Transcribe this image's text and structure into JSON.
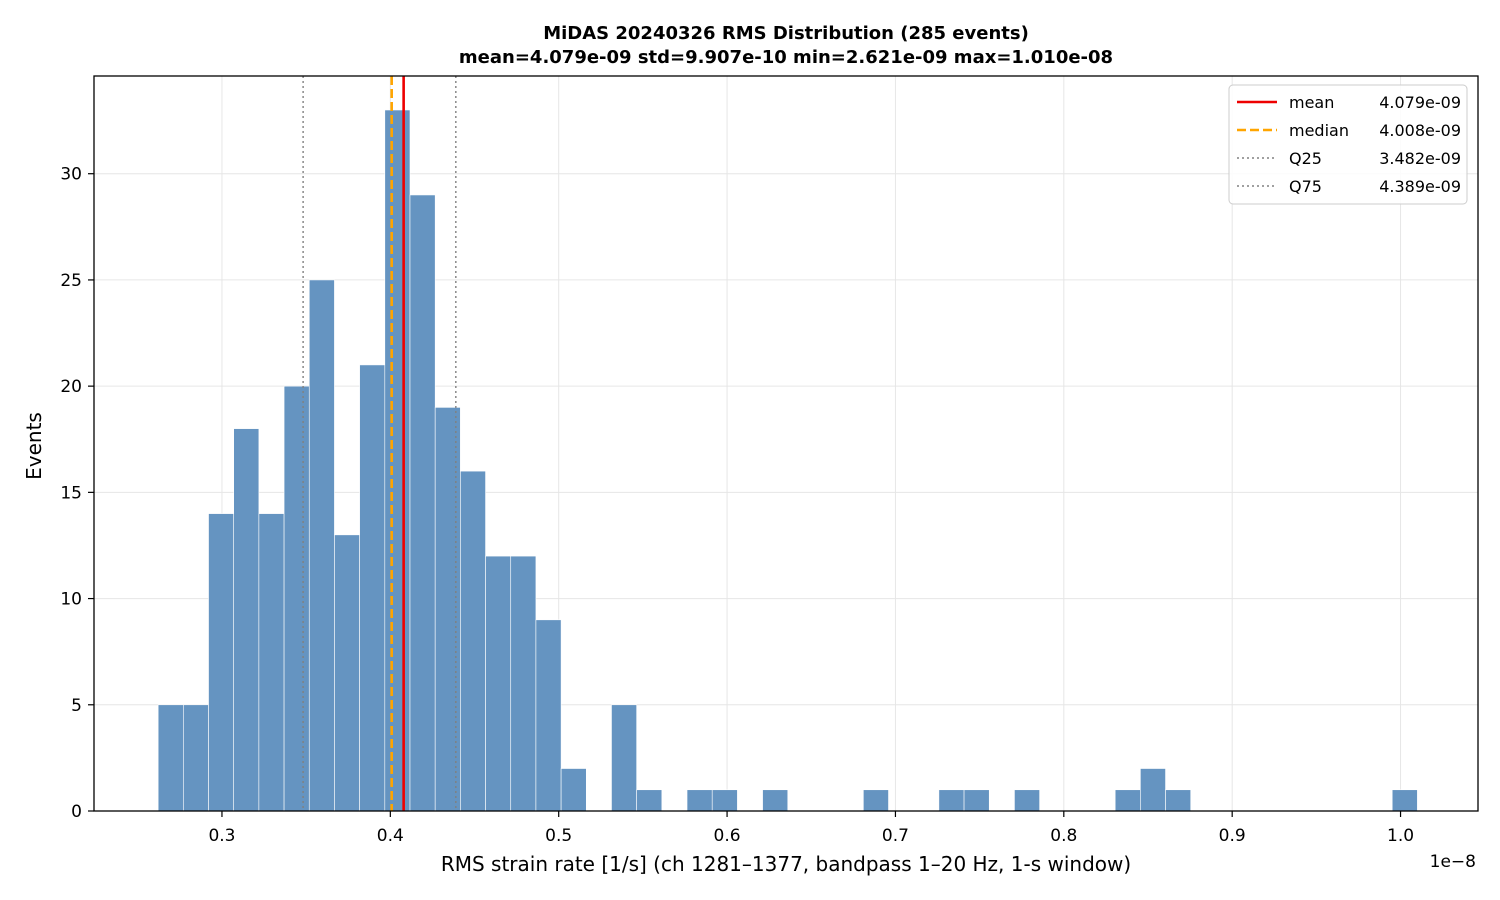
{
  "chart_data": {
    "type": "histogram",
    "title_line1": "MiDAS 20240326  RMS Distribution  (285 events)",
    "title_line2": "mean=4.079e-09  std=9.907e-10  min=2.621e-09  max=1.010e-08",
    "xlabel": "RMS strain rate [1/s]  (ch 1281–1377, bandpass 1–20 Hz, 1-s window)",
    "ylabel": "Events",
    "x_offset_label": "1e−8",
    "xlim": [
      0.224,
      1.046
    ],
    "ylim": [
      0,
      34.6
    ],
    "x_ticks": [
      {
        "value": 0.3,
        "label": "0.3"
      },
      {
        "value": 0.4,
        "label": "0.4"
      },
      {
        "value": 0.5,
        "label": "0.5"
      },
      {
        "value": 0.6,
        "label": "0.6"
      },
      {
        "value": 0.7,
        "label": "0.7"
      },
      {
        "value": 0.8,
        "label": "0.8"
      },
      {
        "value": 0.9,
        "label": "0.9"
      },
      {
        "value": 1.0,
        "label": "1.0"
      }
    ],
    "y_ticks": [
      {
        "value": 0,
        "label": "0"
      },
      {
        "value": 5,
        "label": "5"
      },
      {
        "value": 10,
        "label": "10"
      },
      {
        "value": 15,
        "label": "15"
      },
      {
        "value": 20,
        "label": "20"
      },
      {
        "value": 25,
        "label": "25"
      },
      {
        "value": 30,
        "label": "30"
      }
    ],
    "grid": true,
    "bin_start": 0.2621,
    "bin_width": 0.014958,
    "counts": [
      5,
      5,
      14,
      18,
      14,
      20,
      25,
      13,
      21,
      33,
      29,
      19,
      16,
      12,
      12,
      9,
      2,
      0,
      5,
      1,
      0,
      1,
      1,
      0,
      1,
      0,
      0,
      0,
      1,
      0,
      0,
      1,
      1,
      0,
      1,
      0,
      0,
      0,
      1,
      2,
      1,
      0,
      0,
      0,
      0,
      0,
      0,
      0,
      0,
      1
    ],
    "bar_color": "#6594c1",
    "lines": [
      {
        "name": "mean",
        "value_label": "4.079e-09",
        "x": 0.4079,
        "color": "#ee0000",
        "style": "solid"
      },
      {
        "name": "median",
        "value_label": "4.008e-09",
        "x": 0.4008,
        "color": "#ffa500",
        "style": "dashed"
      },
      {
        "name": "Q25",
        "value_label": "3.482e-09",
        "x": 0.3482,
        "color": "#808080",
        "style": "dotted"
      },
      {
        "name": "Q75",
        "value_label": "4.389e-09",
        "x": 0.4389,
        "color": "#808080",
        "style": "dotted"
      }
    ],
    "legend_position": "top-right"
  }
}
